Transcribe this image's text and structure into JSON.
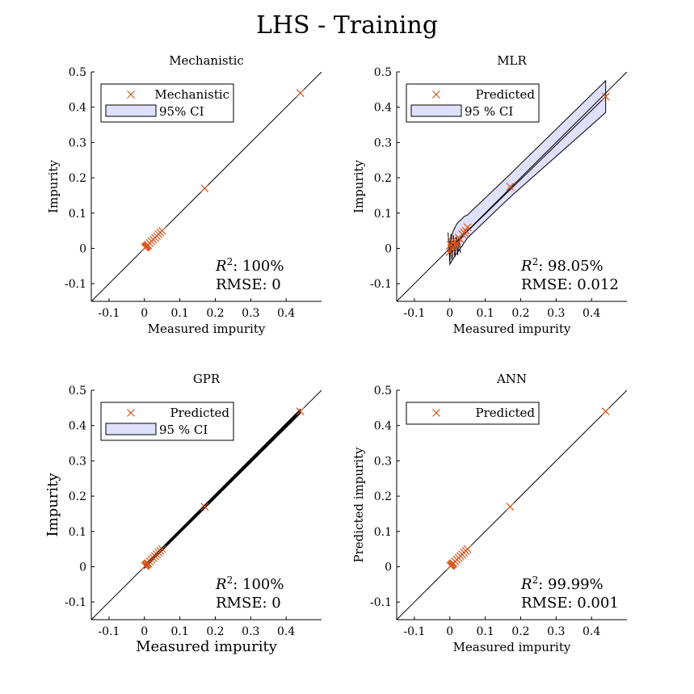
{
  "figure_title": "LHS - Training",
  "colors": {
    "marker": "#D95319",
    "ci_fill": "#dfe0fb",
    "ci_stroke": "#000000",
    "line": "#000000"
  },
  "chart_data": [
    {
      "type": "scatter",
      "title": "Mechanistic",
      "xlabel": "Measured impurity",
      "ylabel": "Impurity",
      "xlim": [
        -0.15,
        0.5
      ],
      "ylim": [
        -0.15,
        0.5
      ],
      "xticks": [
        -0.1,
        0,
        0.1,
        0.2,
        0.3,
        0.4
      ],
      "yticks": [
        -0.1,
        0,
        0.1,
        0.2,
        0.3,
        0.4,
        0.5
      ],
      "xtick_labels": [
        "-0.1",
        "0",
        "0.1",
        "0.2",
        "0.3",
        "0.4"
      ],
      "ytick_labels": [
        "-0.1",
        "0",
        "0.1",
        "0.2",
        "0.3",
        "0.4",
        "0.5"
      ],
      "legend": {
        "location": "top-left",
        "entries": [
          "Mechanistic",
          "95% CI"
        ]
      },
      "ci": "none",
      "stats": {
        "r2_label": "R",
        "r2_value": ": 100%",
        "rmse": "RMSE: 0"
      },
      "x": [
        0.002,
        0.004,
        0.006,
        0.008,
        0.01,
        0.015,
        0.02,
        0.025,
        0.03,
        0.035,
        0.04,
        0.045,
        0.05,
        0.17,
        0.44
      ],
      "y": [
        0.002,
        0.004,
        0.006,
        0.008,
        0.01,
        0.015,
        0.02,
        0.025,
        0.03,
        0.035,
        0.04,
        0.045,
        0.05,
        0.17,
        0.44
      ]
    },
    {
      "type": "scatter",
      "title": "MLR",
      "xlabel": "Measured impurity",
      "ylabel": "Impurity",
      "xlim": [
        -0.15,
        0.5
      ],
      "ylim": [
        -0.15,
        0.5
      ],
      "xticks": [
        -0.1,
        0,
        0.1,
        0.2,
        0.3,
        0.4
      ],
      "yticks": [
        -0.1,
        0,
        0.1,
        0.2,
        0.3,
        0.4,
        0.5
      ],
      "xtick_labels": [
        "-0.1",
        "0",
        "0.1",
        "0.2",
        "0.3",
        "0.4"
      ],
      "ytick_labels": [
        "-0.1",
        "0",
        "0.1",
        "0.2",
        "0.3",
        "0.4",
        "0.5"
      ],
      "legend": {
        "location": "top-left",
        "entries": [
          "Predicted",
          "95 % CI"
        ]
      },
      "ci": "wide",
      "stats": {
        "r2_label": "R",
        "r2_value": ": 98.05%",
        "rmse": "RMSE: 0.012"
      },
      "x": [
        0.0,
        0.002,
        0.004,
        0.006,
        0.008,
        0.01,
        0.015,
        0.02,
        0.025,
        0.03,
        0.035,
        0.04,
        0.045,
        0.05,
        0.17,
        0.44
      ],
      "y": [
        -0.01,
        0.01,
        0.0,
        0.02,
        0.005,
        0.015,
        0.02,
        0.01,
        0.03,
        0.025,
        0.04,
        0.045,
        0.05,
        0.06,
        0.175,
        0.43
      ]
    },
    {
      "type": "scatter",
      "title": "GPR",
      "xlabel": "Measured impurity",
      "ylabel": "Impurity",
      "xlim": [
        -0.15,
        0.5
      ],
      "ylim": [
        -0.15,
        0.5
      ],
      "xticks": [
        -0.1,
        0,
        0.1,
        0.2,
        0.3,
        0.4
      ],
      "yticks": [
        -0.1,
        0,
        0.1,
        0.2,
        0.3,
        0.4,
        0.5
      ],
      "xtick_labels": [
        "-0.1",
        "0",
        "0.1",
        "0.2",
        "0.3",
        "0.4"
      ],
      "ytick_labels": [
        "-0.1",
        "0",
        "0.1",
        "0.2",
        "0.3",
        "0.4",
        "0.5"
      ],
      "legend": {
        "location": "top-left",
        "entries": [
          "Predicted",
          "95 % CI"
        ]
      },
      "ci": "narrow",
      "stats": {
        "r2_label": "R",
        "r2_value": ": 100%",
        "rmse": "RMSE: 0"
      },
      "x": [
        0.002,
        0.004,
        0.006,
        0.008,
        0.01,
        0.015,
        0.02,
        0.025,
        0.03,
        0.035,
        0.04,
        0.045,
        0.05,
        0.17,
        0.44
      ],
      "y": [
        0.002,
        0.004,
        0.006,
        0.008,
        0.01,
        0.015,
        0.02,
        0.025,
        0.03,
        0.035,
        0.04,
        0.045,
        0.05,
        0.17,
        0.44
      ]
    },
    {
      "type": "scatter",
      "title": "ANN",
      "xlabel": "Measured impurity",
      "ylabel": "Predicted impurity",
      "xlim": [
        -0.15,
        0.5
      ],
      "ylim": [
        -0.15,
        0.5
      ],
      "xticks": [
        -0.1,
        0,
        0.1,
        0.2,
        0.3,
        0.4
      ],
      "yticks": [
        -0.1,
        0,
        0.1,
        0.2,
        0.3,
        0.4,
        0.5
      ],
      "xtick_labels": [
        "-0.1",
        "0",
        "0.1",
        "0.2",
        "0.3",
        "0.4"
      ],
      "ytick_labels": [
        "-0.1",
        "0",
        "0.1",
        "0.2",
        "0.3",
        "0.4",
        "0.5"
      ],
      "legend": {
        "location": "top-left",
        "entries": [
          "Predicted"
        ]
      },
      "ci": "none",
      "stats": {
        "r2_label": "R",
        "r2_value": ": 99.99%",
        "rmse": "RMSE: 0.001"
      },
      "x": [
        0.002,
        0.004,
        0.006,
        0.008,
        0.01,
        0.015,
        0.02,
        0.025,
        0.03,
        0.035,
        0.04,
        0.045,
        0.05,
        0.17,
        0.44
      ],
      "y": [
        0.002,
        0.004,
        0.006,
        0.008,
        0.01,
        0.015,
        0.02,
        0.025,
        0.03,
        0.035,
        0.04,
        0.045,
        0.05,
        0.17,
        0.44
      ]
    }
  ]
}
